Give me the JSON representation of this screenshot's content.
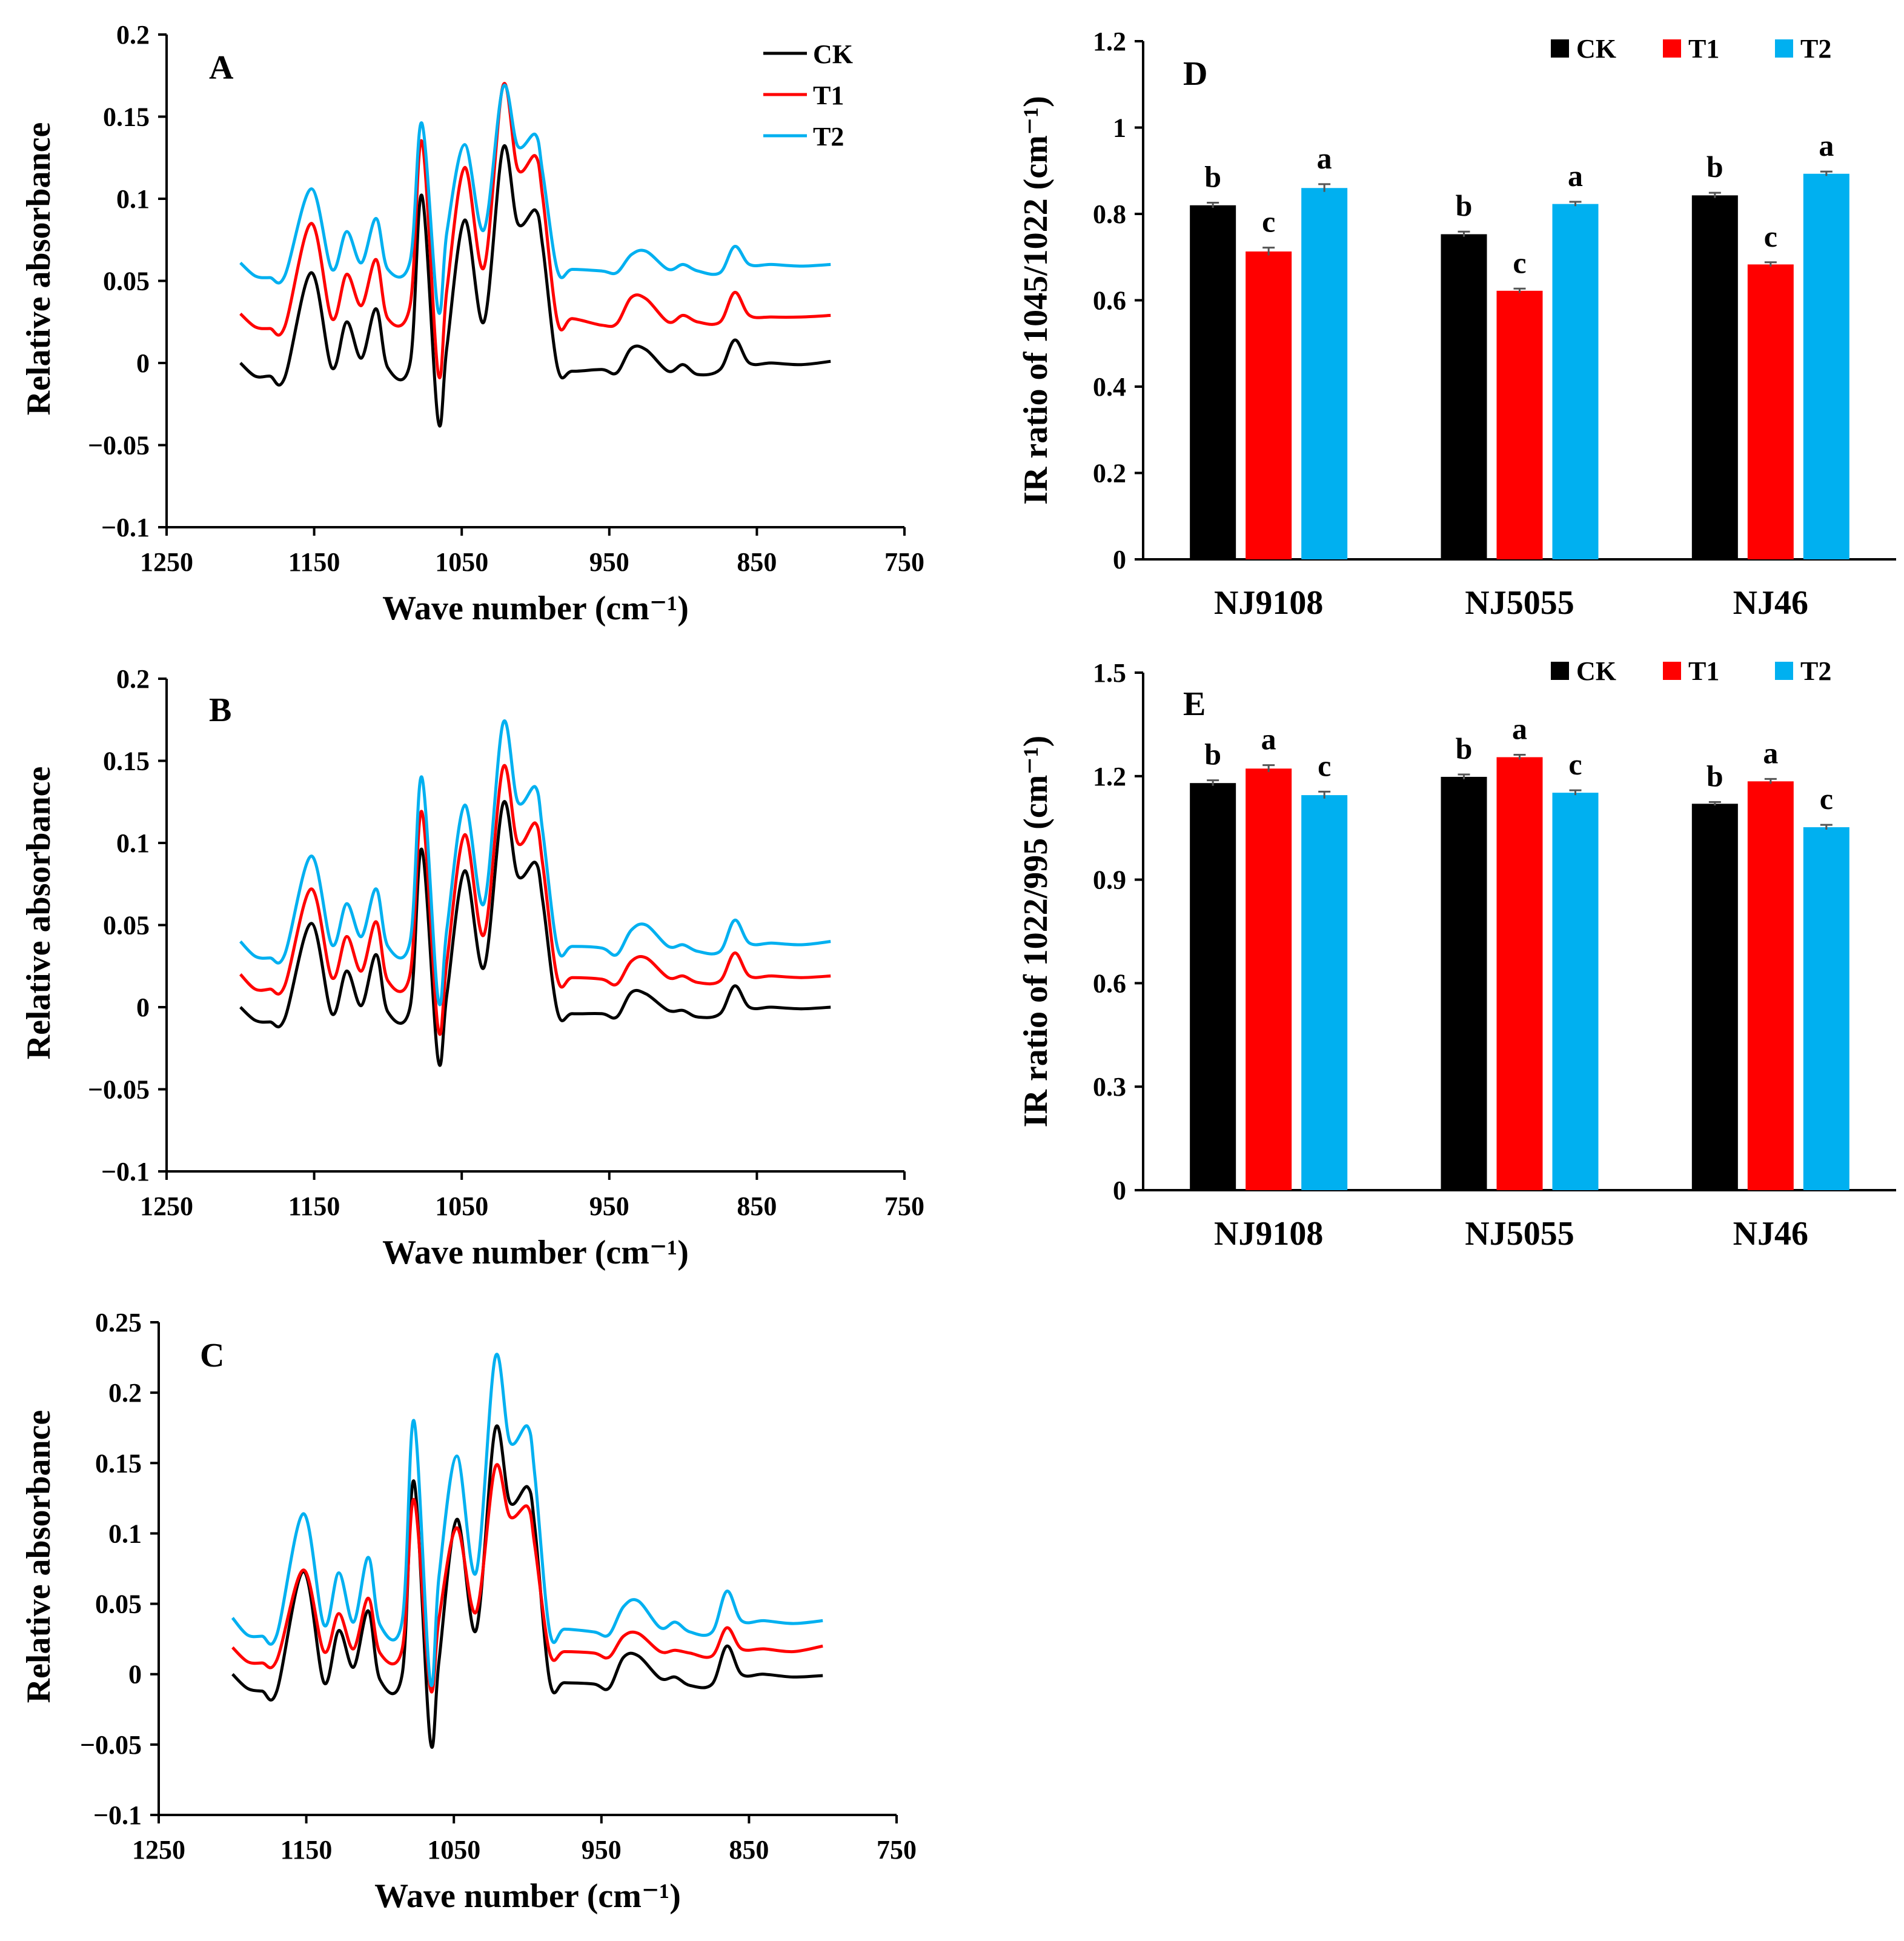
{
  "figure": {
    "series_colors": {
      "CK": "#000000",
      "T1": "#ff0000",
      "T2": "#00b0f0"
    }
  },
  "chart_data": [
    {
      "id": "A",
      "type": "line",
      "panel_label": "A",
      "xlabel": "Wave number (cm⁻¹)",
      "ylabel": "Relative absorbance",
      "xlim": [
        1250,
        750
      ],
      "x_reversed": true,
      "ylim": [
        -0.1,
        0.2
      ],
      "x_ticks": [
        1250,
        1150,
        1050,
        950,
        850,
        750
      ],
      "x_tick_labels": [
        "1250",
        "1150",
        "1050",
        "950",
        "850",
        "750"
      ],
      "y_ticks": [
        -0.1,
        -0.05,
        0,
        0.05,
        0.1,
        0.15,
        0.2
      ],
      "y_tick_labels": [
        "−0.1",
        "−0.05",
        "0",
        "0.05",
        "0.1",
        "0.15",
        "0.2"
      ],
      "legend": [
        "CK",
        "T1",
        "T2"
      ],
      "series": [
        {
          "name": "CK",
          "x": [
            1200,
            1190,
            1180,
            1170,
            1152,
            1138,
            1128,
            1118,
            1108,
            1100,
            1085,
            1077,
            1066,
            1060,
            1048,
            1035,
            1022,
            1012,
            1000,
            995,
            985,
            975,
            955,
            945,
            935,
            925,
            910,
            900,
            890,
            875,
            865,
            855,
            840,
            820,
            800
          ],
          "y": [
            0,
            -0.008,
            -0.008,
            -0.009,
            0.055,
            -0.003,
            0.025,
            0.003,
            0.033,
            -0.003,
            0.0,
            0.102,
            -0.035,
            0.01,
            0.087,
            0.025,
            0.131,
            0.085,
            0.093,
            0.07,
            -0.003,
            -0.005,
            -0.004,
            -0.006,
            0.009,
            0.008,
            -0.005,
            -0.001,
            -0.007,
            -0.004,
            0.014,
            0.0,
            0.0,
            -0.001,
            0.001
          ]
        },
        {
          "name": "T1",
          "x": [
            1200,
            1190,
            1180,
            1170,
            1152,
            1138,
            1128,
            1118,
            1108,
            1100,
            1085,
            1077,
            1066,
            1060,
            1048,
            1035,
            1022,
            1012,
            1000,
            995,
            985,
            975,
            955,
            945,
            935,
            925,
            910,
            900,
            890,
            875,
            865,
            855,
            840,
            820,
            800
          ],
          "y": [
            0.03,
            0.022,
            0.021,
            0.022,
            0.085,
            0.027,
            0.054,
            0.035,
            0.063,
            0.027,
            0.035,
            0.135,
            -0.006,
            0.045,
            0.119,
            0.058,
            0.169,
            0.118,
            0.126,
            0.1,
            0.025,
            0.027,
            0.023,
            0.024,
            0.04,
            0.039,
            0.025,
            0.029,
            0.025,
            0.025,
            0.043,
            0.029,
            0.028,
            0.028,
            0.029
          ]
        },
        {
          "name": "T2",
          "x": [
            1200,
            1190,
            1180,
            1170,
            1152,
            1138,
            1128,
            1118,
            1108,
            1100,
            1085,
            1077,
            1066,
            1060,
            1048,
            1035,
            1022,
            1012,
            1000,
            995,
            985,
            975,
            955,
            945,
            935,
            925,
            910,
            900,
            890,
            875,
            865,
            855,
            840,
            820,
            800
          ],
          "y": [
            0.061,
            0.053,
            0.052,
            0.053,
            0.106,
            0.057,
            0.08,
            0.061,
            0.088,
            0.057,
            0.062,
            0.146,
            0.032,
            0.08,
            0.133,
            0.081,
            0.168,
            0.132,
            0.139,
            0.115,
            0.056,
            0.057,
            0.056,
            0.055,
            0.066,
            0.068,
            0.057,
            0.06,
            0.056,
            0.055,
            0.071,
            0.06,
            0.06,
            0.059,
            0.06
          ]
        }
      ]
    },
    {
      "id": "B",
      "type": "line",
      "panel_label": "B",
      "xlabel": "Wave number (cm⁻¹)",
      "ylabel": "Relative absorbance",
      "xlim": [
        1250,
        750
      ],
      "x_reversed": true,
      "ylim": [
        -0.1,
        0.2
      ],
      "x_ticks": [
        1250,
        1150,
        1050,
        950,
        850,
        750
      ],
      "x_tick_labels": [
        "1250",
        "1150",
        "1050",
        "950",
        "850",
        "750"
      ],
      "y_ticks": [
        -0.1,
        -0.05,
        0,
        0.05,
        0.1,
        0.15,
        0.2
      ],
      "y_tick_labels": [
        "−0.1",
        "−0.05",
        "0",
        "0.05",
        "0.1",
        "0.15",
        "0.2"
      ],
      "series": [
        {
          "name": "CK",
          "x": [
            1200,
            1190,
            1180,
            1170,
            1152,
            1138,
            1128,
            1118,
            1108,
            1100,
            1085,
            1077,
            1066,
            1060,
            1048,
            1035,
            1022,
            1012,
            1000,
            995,
            985,
            975,
            955,
            945,
            935,
            925,
            910,
            900,
            890,
            875,
            865,
            855,
            840,
            820,
            800
          ],
          "y": [
            0,
            -0.008,
            -0.009,
            -0.007,
            0.051,
            -0.004,
            0.022,
            0.001,
            0.032,
            -0.003,
            0.0,
            0.096,
            -0.032,
            0.008,
            0.083,
            0.024,
            0.124,
            0.08,
            0.088,
            0.064,
            -0.003,
            -0.004,
            -0.004,
            -0.006,
            0.009,
            0.008,
            -0.002,
            -0.002,
            -0.006,
            -0.004,
            0.013,
            0.0,
            0.0,
            -0.001,
            0.0
          ]
        },
        {
          "name": "T1",
          "x": [
            1200,
            1190,
            1180,
            1170,
            1152,
            1138,
            1128,
            1118,
            1108,
            1100,
            1085,
            1077,
            1066,
            1060,
            1048,
            1035,
            1022,
            1012,
            1000,
            995,
            985,
            975,
            955,
            945,
            935,
            925,
            910,
            900,
            890,
            875,
            865,
            855,
            840,
            820,
            800
          ],
          "y": [
            0.02,
            0.011,
            0.011,
            0.013,
            0.072,
            0.018,
            0.043,
            0.022,
            0.052,
            0.016,
            0.02,
            0.119,
            -0.013,
            0.028,
            0.105,
            0.044,
            0.146,
            0.1,
            0.112,
            0.086,
            0.017,
            0.018,
            0.017,
            0.014,
            0.028,
            0.03,
            0.018,
            0.019,
            0.015,
            0.016,
            0.033,
            0.019,
            0.019,
            0.018,
            0.019
          ]
        },
        {
          "name": "T2",
          "x": [
            1200,
            1190,
            1180,
            1170,
            1152,
            1138,
            1128,
            1118,
            1108,
            1100,
            1085,
            1077,
            1066,
            1060,
            1048,
            1035,
            1022,
            1012,
            1000,
            995,
            985,
            975,
            955,
            945,
            935,
            925,
            910,
            900,
            890,
            875,
            865,
            855,
            840,
            820,
            800
          ],
          "y": [
            0.04,
            0.031,
            0.03,
            0.032,
            0.092,
            0.038,
            0.063,
            0.043,
            0.072,
            0.037,
            0.04,
            0.14,
            0.005,
            0.048,
            0.123,
            0.063,
            0.173,
            0.125,
            0.134,
            0.106,
            0.036,
            0.037,
            0.036,
            0.032,
            0.047,
            0.05,
            0.037,
            0.038,
            0.034,
            0.034,
            0.053,
            0.039,
            0.039,
            0.038,
            0.04
          ]
        }
      ]
    },
    {
      "id": "C",
      "type": "line",
      "panel_label": "C",
      "xlabel": "Wave number (cm⁻¹)",
      "ylabel": "Relative absorbance",
      "xlim": [
        1250,
        750
      ],
      "x_reversed": true,
      "ylim": [
        -0.1,
        0.25
      ],
      "x_ticks": [
        1250,
        1150,
        1050,
        950,
        850,
        750
      ],
      "x_tick_labels": [
        "1250",
        "1150",
        "1050",
        "950",
        "850",
        "750"
      ],
      "y_ticks": [
        -0.1,
        -0.05,
        0,
        0.05,
        0.1,
        0.15,
        0.2,
        0.25
      ],
      "y_tick_labels": [
        "−0.1",
        "−0.05",
        "0",
        "0.05",
        "0.1",
        "0.15",
        "0.2",
        "0.25"
      ],
      "series": [
        {
          "name": "CK",
          "x": [
            1200,
            1190,
            1180,
            1170,
            1152,
            1138,
            1128,
            1118,
            1108,
            1100,
            1085,
            1077,
            1066,
            1060,
            1048,
            1035,
            1022,
            1012,
            1000,
            995,
            985,
            975,
            955,
            945,
            935,
            925,
            910,
            900,
            890,
            875,
            865,
            855,
            840,
            820,
            800
          ],
          "y": [
            0,
            -0.01,
            -0.012,
            -0.012,
            0.073,
            -0.006,
            0.031,
            0.005,
            0.045,
            -0.004,
            0.0,
            0.137,
            -0.047,
            0.01,
            0.11,
            0.031,
            0.174,
            0.122,
            0.133,
            0.103,
            -0.005,
            -0.006,
            -0.007,
            -0.01,
            0.012,
            0.013,
            -0.003,
            -0.002,
            -0.008,
            -0.007,
            0.02,
            0.0,
            0.0,
            -0.002,
            -0.001
          ]
        },
        {
          "name": "T1",
          "x": [
            1200,
            1190,
            1180,
            1170,
            1152,
            1138,
            1128,
            1118,
            1108,
            1100,
            1085,
            1077,
            1066,
            1060,
            1048,
            1035,
            1022,
            1012,
            1000,
            995,
            985,
            975,
            955,
            945,
            935,
            925,
            910,
            900,
            890,
            875,
            865,
            855,
            840,
            820,
            800
          ],
          "y": [
            0.019,
            0.009,
            0.008,
            0.01,
            0.074,
            0.016,
            0.043,
            0.018,
            0.054,
            0.015,
            0.018,
            0.124,
            -0.01,
            0.04,
            0.104,
            0.044,
            0.147,
            0.112,
            0.119,
            0.09,
            0.015,
            0.016,
            0.015,
            0.012,
            0.027,
            0.029,
            0.016,
            0.017,
            0.015,
            0.013,
            0.033,
            0.018,
            0.018,
            0.016,
            0.02
          ]
        },
        {
          "name": "T2",
          "x": [
            1200,
            1190,
            1180,
            1170,
            1152,
            1138,
            1128,
            1118,
            1108,
            1100,
            1085,
            1077,
            1066,
            1060,
            1048,
            1035,
            1022,
            1012,
            1000,
            995,
            985,
            975,
            955,
            945,
            935,
            925,
            910,
            900,
            890,
            875,
            865,
            855,
            840,
            820,
            800
          ],
          "y": [
            0.04,
            0.028,
            0.027,
            0.028,
            0.114,
            0.035,
            0.072,
            0.037,
            0.083,
            0.035,
            0.038,
            0.18,
            -0.005,
            0.07,
            0.155,
            0.072,
            0.225,
            0.165,
            0.176,
            0.14,
            0.03,
            0.032,
            0.03,
            0.028,
            0.048,
            0.052,
            0.033,
            0.037,
            0.03,
            0.03,
            0.059,
            0.038,
            0.038,
            0.036,
            0.038
          ]
        }
      ]
    },
    {
      "id": "D",
      "type": "bar",
      "panel_label": "D",
      "ylabel": "IR ratio of 1045/1022 (cm⁻¹)",
      "ylim": [
        0,
        1.2
      ],
      "y_ticks": [
        0,
        0.2,
        0.4,
        0.6,
        0.8,
        1,
        1.2
      ],
      "y_tick_labels": [
        "0",
        "0.2",
        "0.4",
        "0.6",
        "0.8",
        "1",
        "1.2"
      ],
      "categories": [
        "NJ9108",
        "NJ5055",
        "NJ46"
      ],
      "legend": [
        "CK",
        "T1",
        "T2"
      ],
      "series": [
        {
          "name": "CK",
          "values": [
            0.82,
            0.753,
            0.843
          ],
          "errors": [
            0.006,
            0.006,
            0.006
          ],
          "letters": [
            "b",
            "b",
            "b"
          ]
        },
        {
          "name": "T1",
          "values": [
            0.713,
            0.622,
            0.683
          ],
          "errors": [
            0.009,
            0.005,
            0.005
          ],
          "letters": [
            "c",
            "c",
            "c"
          ]
        },
        {
          "name": "T2",
          "values": [
            0.86,
            0.823,
            0.893
          ],
          "errors": [
            0.009,
            0.005,
            0.005
          ],
          "letters": [
            "a",
            "a",
            "a"
          ]
        }
      ]
    },
    {
      "id": "E",
      "type": "bar",
      "panel_label": "E",
      "ylabel": "IR ratio of 1022/995 (cm⁻¹)",
      "ylim": [
        0,
        1.5
      ],
      "y_ticks": [
        0,
        0.3,
        0.6,
        0.9,
        1.2,
        1.5
      ],
      "y_tick_labels": [
        "0",
        "0.3",
        "0.6",
        "0.9",
        "1.2",
        "1.5"
      ],
      "categories": [
        "NJ9108",
        "NJ5055",
        "NJ46"
      ],
      "legend": [
        "CK",
        "T1",
        "T2"
      ],
      "series": [
        {
          "name": "CK",
          "values": [
            1.18,
            1.198,
            1.12
          ],
          "errors": [
            0.008,
            0.007,
            0.005
          ],
          "letters": [
            "b",
            "b",
            "b"
          ]
        },
        {
          "name": "T1",
          "values": [
            1.222,
            1.255,
            1.185
          ],
          "errors": [
            0.01,
            0.007,
            0.007
          ],
          "letters": [
            "a",
            "a",
            "a"
          ]
        },
        {
          "name": "T2",
          "values": [
            1.145,
            1.152,
            1.052
          ],
          "errors": [
            0.01,
            0.007,
            0.007
          ],
          "letters": [
            "c",
            "c",
            "c"
          ]
        }
      ]
    }
  ]
}
